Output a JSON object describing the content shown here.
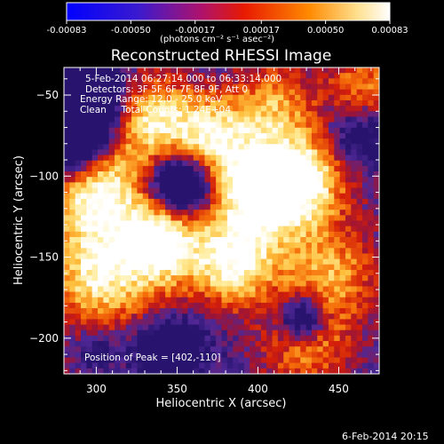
{
  "colorbar": {
    "tick_labels": [
      "-0.00083",
      "-0.00050",
      "-0.00017",
      "0.00017",
      "0.00050",
      "0.00083"
    ],
    "ticks": [
      -0.00083,
      -0.0005,
      -0.00017,
      0.00017,
      0.0005,
      0.00083
    ],
    "range": [
      -0.00083,
      0.00083
    ],
    "unit_label": "(photons cm⁻² s⁻¹ asec⁻²)"
  },
  "chart_data": {
    "type": "heatmap",
    "title": "Reconstructed RHESSI Image",
    "xlabel": "Heliocentric X (arcsec)",
    "ylabel": "Heliocentric Y (arcsec)",
    "xlim": [
      280,
      475
    ],
    "ylim": [
      -222,
      -33
    ],
    "x_ticks": [
      300,
      350,
      400,
      450
    ],
    "x_tick_labels": [
      "300",
      "350",
      "400",
      "450"
    ],
    "y_ticks": [
      -50,
      -100,
      -150,
      -200
    ],
    "y_tick_labels": [
      "−50",
      "−100",
      "−150",
      "−200"
    ],
    "annotations": [
      "5-Feb-2014 06:27:14.000 to 06:33:14.000",
      "Detectors: 3F 5F 6F 7F 8F 9F, Att 0",
      "Energy Range: 12.0 - 25.0 keV",
      "Clean     Total Counts: 1.24E+04"
    ],
    "peak_label": "Position of Peak = [402,-110]",
    "peak_position": [
      402,
      -110
    ],
    "peak_value": 0.00083,
    "min_value": -0.00083
  },
  "footer": {
    "date": "6-Feb-2014 20:15"
  },
  "colors": {
    "background": "#000000",
    "text": "#ffffff",
    "colormap": [
      "#0000ff",
      "#5a2a9a",
      "#a01040",
      "#e81a00",
      "#ff8800",
      "#ffe890",
      "#ffffff"
    ]
  }
}
